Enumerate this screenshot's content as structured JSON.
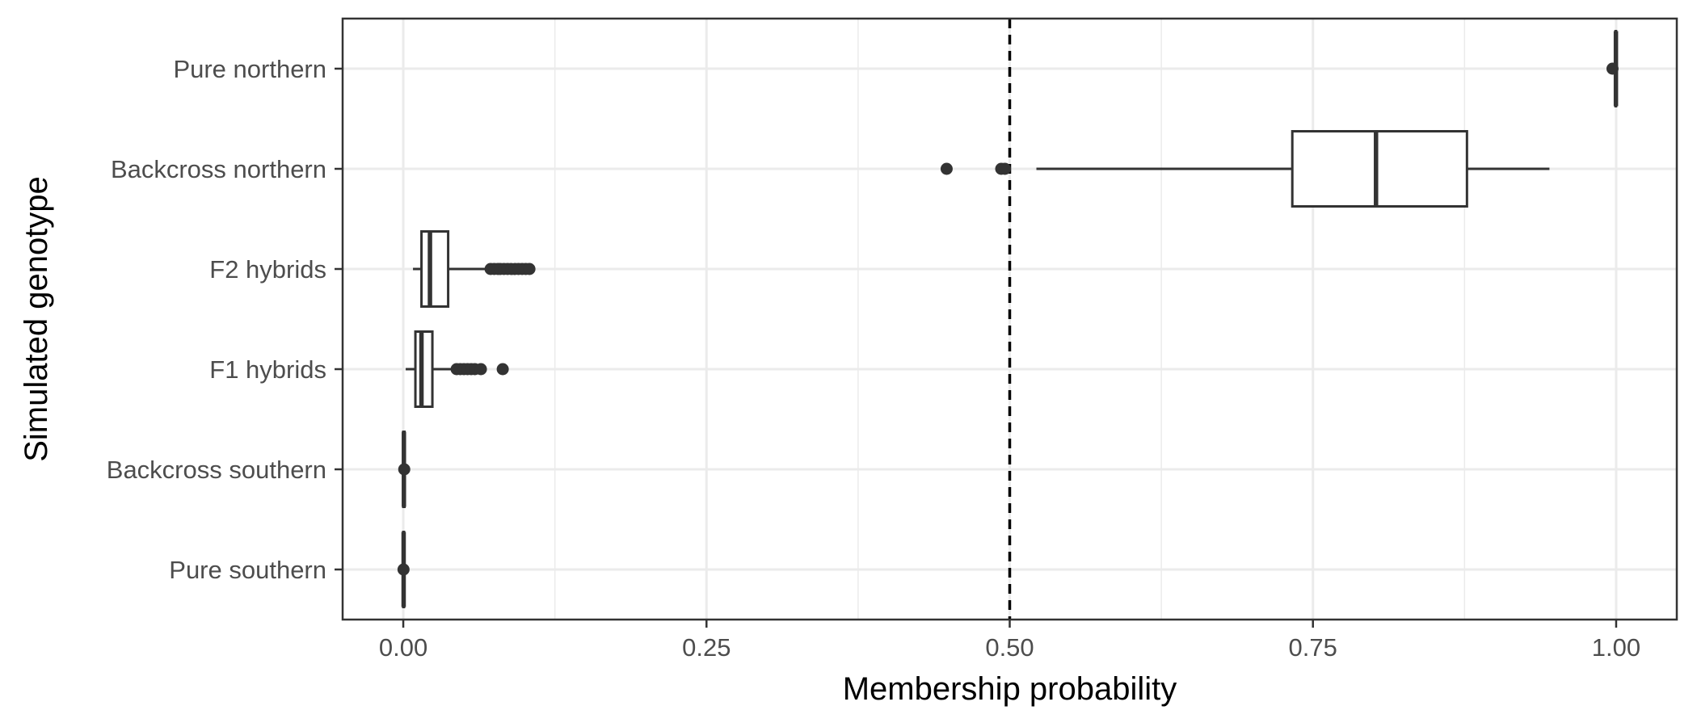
{
  "chart_data": {
    "type": "boxplot",
    "orientation": "horizontal",
    "xlabel": "Membership probability",
    "ylabel": "Simulated genotype",
    "xlim": [
      -0.05,
      1.05
    ],
    "x_ticks": [
      "0.00",
      "0.25",
      "0.50",
      "0.75",
      "1.00"
    ],
    "x_tick_values": [
      0,
      0.25,
      0.5,
      0.75,
      1.0
    ],
    "grid": true,
    "reference_line": {
      "x": 0.5,
      "style": "dashed"
    },
    "categories": [
      "Pure northern",
      "Backcross northern",
      "F2 hybrids",
      "F1 hybrids",
      "Backcross southern",
      "Pure southern"
    ],
    "boxes": [
      {
        "category": "Pure northern",
        "whisker_low": 0.999,
        "q1": 0.9995,
        "median": 0.9998,
        "q3": 0.9999,
        "whisker_high": 1.0,
        "outliers": [
          0.997
        ]
      },
      {
        "category": "Backcross northern",
        "whisker_low": 0.522,
        "q1": 0.733,
        "median": 0.802,
        "q3": 0.877,
        "whisker_high": 0.945,
        "outliers": [
          0.448,
          0.493,
          0.496
        ]
      },
      {
        "category": "F2 hybrids",
        "whisker_low": 0.008,
        "q1": 0.015,
        "median": 0.022,
        "q3": 0.037,
        "whisker_high": 0.07,
        "outliers": [
          0.072,
          0.075,
          0.078,
          0.08,
          0.083,
          0.086,
          0.089,
          0.092,
          0.095,
          0.098,
          0.101,
          0.104
        ]
      },
      {
        "category": "F1 hybrids",
        "whisker_low": 0.002,
        "q1": 0.01,
        "median": 0.015,
        "q3": 0.024,
        "whisker_high": 0.043,
        "outliers": [
          0.044,
          0.047,
          0.05,
          0.053,
          0.056,
          0.059,
          0.064,
          0.082
        ]
      },
      {
        "category": "Backcross southern",
        "whisker_low": 0.0,
        "q1": 0.0,
        "median": 0.0005,
        "q3": 0.001,
        "whisker_high": 0.002,
        "outliers": [
          0.0008
        ]
      },
      {
        "category": "Pure southern",
        "whisker_low": 0.0,
        "q1": 0.0,
        "median": 0.0003,
        "q3": 0.0006,
        "whisker_high": 0.001,
        "outliers": [
          0.0002
        ]
      }
    ],
    "colors": {
      "box_stroke": "#333333",
      "grid": "#ebebeb",
      "panel_border": "#333333",
      "reference_line": "#000000"
    }
  }
}
